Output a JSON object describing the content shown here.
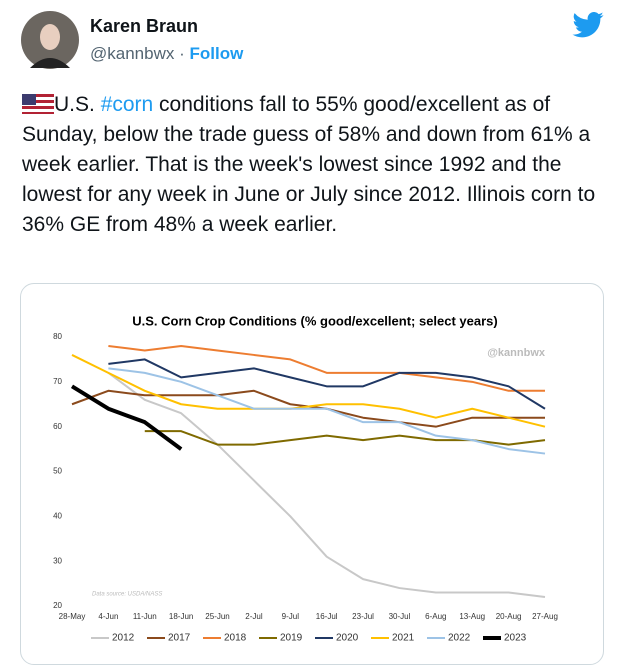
{
  "tweet": {
    "name": "Karen Braun",
    "handle": "@kannbwx",
    "separator": "·",
    "follow": "Follow",
    "text_start": "U.S. ",
    "hashtag": "#corn",
    "text_end": " conditions fall to 55% good/excellent as of Sunday, below the trade guess of 58% and down from 61% a week earlier. That is the week's lowest since 1992 and the lowest for any week in June or July since 2012. Illinois corn to 36% GE from 48% a week earlier."
  },
  "chart_data": {
    "type": "line",
    "title": "U.S. Corn Crop Conditions (% good/excellent; select years)",
    "watermark": "@kannbwx",
    "source": "Data source: USDA/NASS",
    "categories": [
      "28-May",
      "4-Jun",
      "11-Jun",
      "18-Jun",
      "25-Jun",
      "2-Jul",
      "9-Jul",
      "16-Jul",
      "23-Jul",
      "30-Jul",
      "6-Aug",
      "13-Aug",
      "20-Aug",
      "27-Aug"
    ],
    "ylim": [
      20,
      80
    ],
    "yticks": [
      20,
      30,
      40,
      50,
      60,
      70,
      80
    ],
    "grid": false,
    "legend": "bottom",
    "series": [
      {
        "name": "2012",
        "color": "#c8c8c8",
        "width": 2,
        "values": [
          null,
          72,
          66,
          63,
          56,
          48,
          40,
          31,
          26,
          24,
          23,
          23,
          23,
          22
        ]
      },
      {
        "name": "2017",
        "color": "#8b4a1c",
        "width": 2,
        "values": [
          65,
          68,
          67,
          67,
          67,
          68,
          65,
          64,
          62,
          61,
          60,
          62,
          62,
          62
        ]
      },
      {
        "name": "2018",
        "color": "#ed7d31",
        "width": 2,
        "values": [
          null,
          78,
          77,
          78,
          77,
          76,
          75,
          72,
          72,
          72,
          71,
          70,
          68,
          68
        ]
      },
      {
        "name": "2019",
        "color": "#7f6a00",
        "width": 2,
        "values": [
          null,
          null,
          59,
          59,
          56,
          56,
          57,
          58,
          57,
          58,
          57,
          57,
          56,
          57
        ]
      },
      {
        "name": "2020",
        "color": "#203864",
        "width": 2,
        "values": [
          null,
          74,
          75,
          71,
          72,
          73,
          71,
          69,
          69,
          72,
          72,
          71,
          69,
          64
        ]
      },
      {
        "name": "2021",
        "color": "#ffc000",
        "width": 2,
        "values": [
          76,
          72,
          68,
          65,
          64,
          64,
          64,
          65,
          65,
          64,
          62,
          64,
          62,
          60
        ]
      },
      {
        "name": "2022",
        "color": "#9dc3e6",
        "width": 2,
        "values": [
          null,
          73,
          72,
          70,
          67,
          64,
          64,
          64,
          61,
          61,
          58,
          57,
          55,
          54
        ]
      },
      {
        "name": "2023",
        "color": "#000000",
        "width": 4,
        "values": [
          69,
          64,
          61,
          55,
          null,
          null,
          null,
          null,
          null,
          null,
          null,
          null,
          null,
          null
        ]
      }
    ]
  }
}
